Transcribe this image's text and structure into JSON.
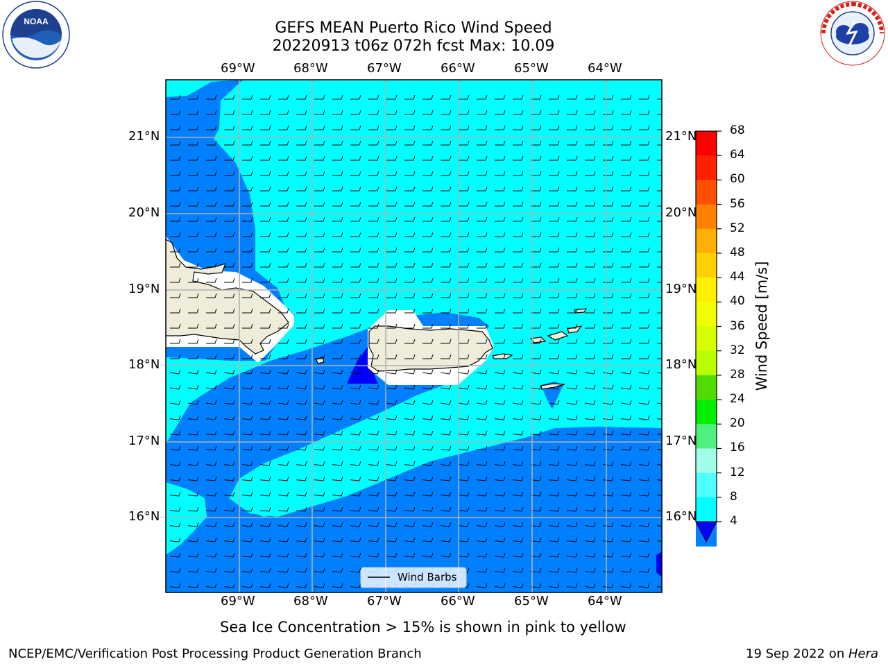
{
  "header": {
    "title_line1": "GEFS MEAN Puerto Rico Wind Speed",
    "title_line2": "20220913 t06z 072h fcst   Max: 10.09"
  },
  "logos": {
    "left": {
      "icon": "noaa-logo-icon",
      "text": "NOAA",
      "ring_text": "NATIONAL OCEANIC AND ATMOSPHERIC ADMINISTRATION · U.S. DEPARTMENT OF COMMERCE",
      "color": "#1f3f8f"
    },
    "right": {
      "icon": "national-weather-service-logo-icon",
      "ring_text": "NATIONAL WEATHER SERVICE",
      "color": "#d91e18"
    }
  },
  "map": {
    "longitude_labels": [
      "69°W",
      "68°W",
      "67°W",
      "66°W",
      "65°W",
      "64°W"
    ],
    "latitude_labels": [
      "21°N",
      "20°N",
      "19°N",
      "18°N",
      "17°N",
      "16°N"
    ],
    "legend_label": "Wind Barbs",
    "colors": {
      "fill_4_8": "#0080ff",
      "fill_8_12": "#00ffff",
      "fill_lt_4": "#0000ff",
      "land": "#efecda",
      "grid": "#b0b0b0"
    }
  },
  "colorbar": {
    "label": "Wind Speed [m/s]",
    "ticks": [
      "68",
      "64",
      "60",
      "56",
      "52",
      "48",
      "44",
      "40",
      "36",
      "32",
      "28",
      "24",
      "20",
      "16",
      "12",
      "8",
      "4"
    ],
    "colors": [
      "#ff0000",
      "#ff2000",
      "#ff5000",
      "#ff8000",
      "#ffb000",
      "#ffd000",
      "#fff000",
      "#f0ff00",
      "#d8ff00",
      "#b8ff00",
      "#50dc00",
      "#00ee00",
      "#50f080",
      "#a0ffe8",
      "#50ffff",
      "#00ffff",
      "#0080ff"
    ],
    "under_color": "#0000ff"
  },
  "caption": "Sea Ice Concentration > 15% is shown in pink to yellow",
  "footer": {
    "left": "NCEP/EMC/Verification Post Processing Product Generation Branch",
    "right_prefix": "19 Sep 2022 on ",
    "right_italic": "Hera"
  }
}
